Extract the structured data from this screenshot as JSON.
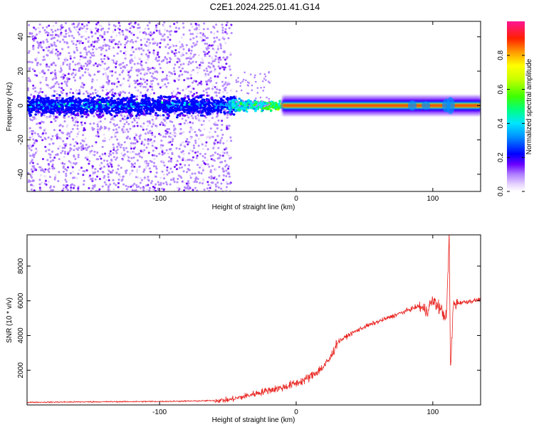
{
  "figure": {
    "title": "C2E1.2024.225.01.41.G14"
  },
  "chart_data": [
    {
      "type": "heatmap",
      "xlabel": "Height of straight line (km)",
      "ylabel": "Frequency (Hz)",
      "xlim": [
        -197,
        135
      ],
      "ylim": [
        -50,
        49
      ],
      "xticks": [
        -100,
        0,
        100
      ],
      "yticks": [
        -40,
        -20,
        0,
        20,
        40
      ],
      "colorbar": {
        "label": "Normalized spectral amplitude",
        "range": [
          0,
          1
        ],
        "ticks": [
          0.0,
          0.2,
          0.4,
          0.6,
          0.8
        ],
        "colormap": [
          "#ffffff",
          "#cc99ff",
          "#8a2be2",
          "#3300ff",
          "#0000ff",
          "#00e5ff",
          "#00ff66",
          "#80ff00",
          "#ffff00",
          "#ff9900",
          "#ff0000",
          "#ff1493"
        ]
      },
      "description_points": [
        {
          "x": -197,
          "y": 0,
          "v": 0.2
        },
        {
          "x": -50,
          "y": 0,
          "v": 0.3
        },
        {
          "x": -20,
          "y": 0,
          "v": 0.5
        },
        {
          "x": 0,
          "y": 0,
          "v": 0.85
        },
        {
          "x": 50,
          "y": 0,
          "v": 0.95
        },
        {
          "x": 110,
          "y": 0,
          "v": 0.9
        },
        {
          "x": 135,
          "y": 0,
          "v": 0.3
        }
      ]
    },
    {
      "type": "line",
      "xlabel": "Height of straight line (km)",
      "ylabel": "SNR (10 * v/v)",
      "xlim": [
        -197,
        135
      ],
      "ylim": [
        0,
        9800
      ],
      "xticks": [
        -100,
        0,
        100
      ],
      "yticks": [
        2000,
        4000,
        6000,
        8000
      ],
      "series": [
        {
          "color": "#e8231f",
          "x": [
            -197,
            -150,
            -100,
            -70,
            -50,
            -40,
            -30,
            -20,
            -10,
            0,
            5,
            10,
            15,
            20,
            25,
            30,
            40,
            50,
            60,
            70,
            80,
            90,
            95,
            100,
            105,
            110,
            112,
            113,
            115,
            120,
            130,
            135
          ],
          "y": [
            150,
            180,
            200,
            230,
            280,
            450,
            650,
            850,
            1000,
            1250,
            1400,
            1600,
            1900,
            2200,
            2700,
            3600,
            4100,
            4500,
            4800,
            5100,
            5400,
            5700,
            5400,
            6000,
            5600,
            5000,
            9800,
            1800,
            5800,
            5900,
            6000,
            6100
          ]
        }
      ]
    }
  ]
}
